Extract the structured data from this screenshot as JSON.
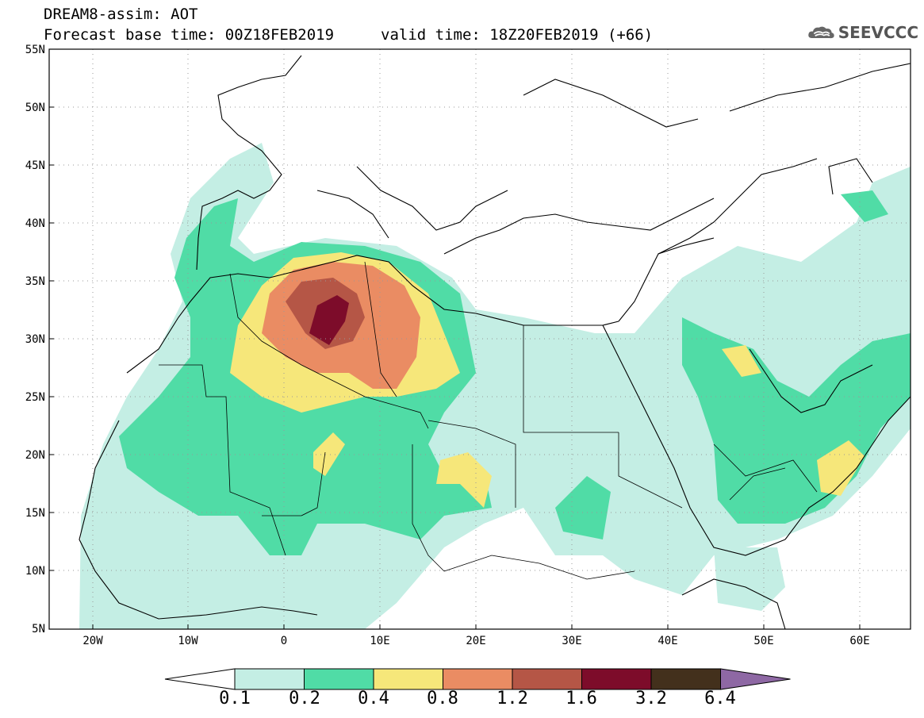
{
  "header": {
    "title": "DREAM8-assim: AOT",
    "base_time": "Forecast base time: 00Z18FEB2019",
    "valid_time": "valid time: 18Z20FEB2019 (+66)"
  },
  "logo": {
    "text": "SEEVCCC",
    "icon": "cloud-icon"
  },
  "map": {
    "lat_labels": [
      "55N",
      "50N",
      "45N",
      "40N",
      "35N",
      "30N",
      "25N",
      "20N",
      "15N",
      "10N",
      "5N"
    ],
    "lon_labels": [
      "20W",
      "10W",
      "0",
      "10E",
      "20E",
      "30E",
      "40E",
      "50E",
      "60E"
    ],
    "lat_range": [
      5,
      55
    ],
    "lon_range": [
      -25,
      65
    ],
    "grid": "dotted"
  },
  "colorbar": {
    "labels": [
      "0.1",
      "0.2",
      "0.4",
      "0.8",
      "1.2",
      "1.6",
      "3.2",
      "6.4"
    ],
    "colors": [
      "#c4eee4",
      "#50dca6",
      "#f6e77a",
      "#ea8c63",
      "#b55646",
      "#7d0c2a",
      "#43301c",
      "#8e68a4"
    ],
    "under_color": "#ffffff"
  }
}
